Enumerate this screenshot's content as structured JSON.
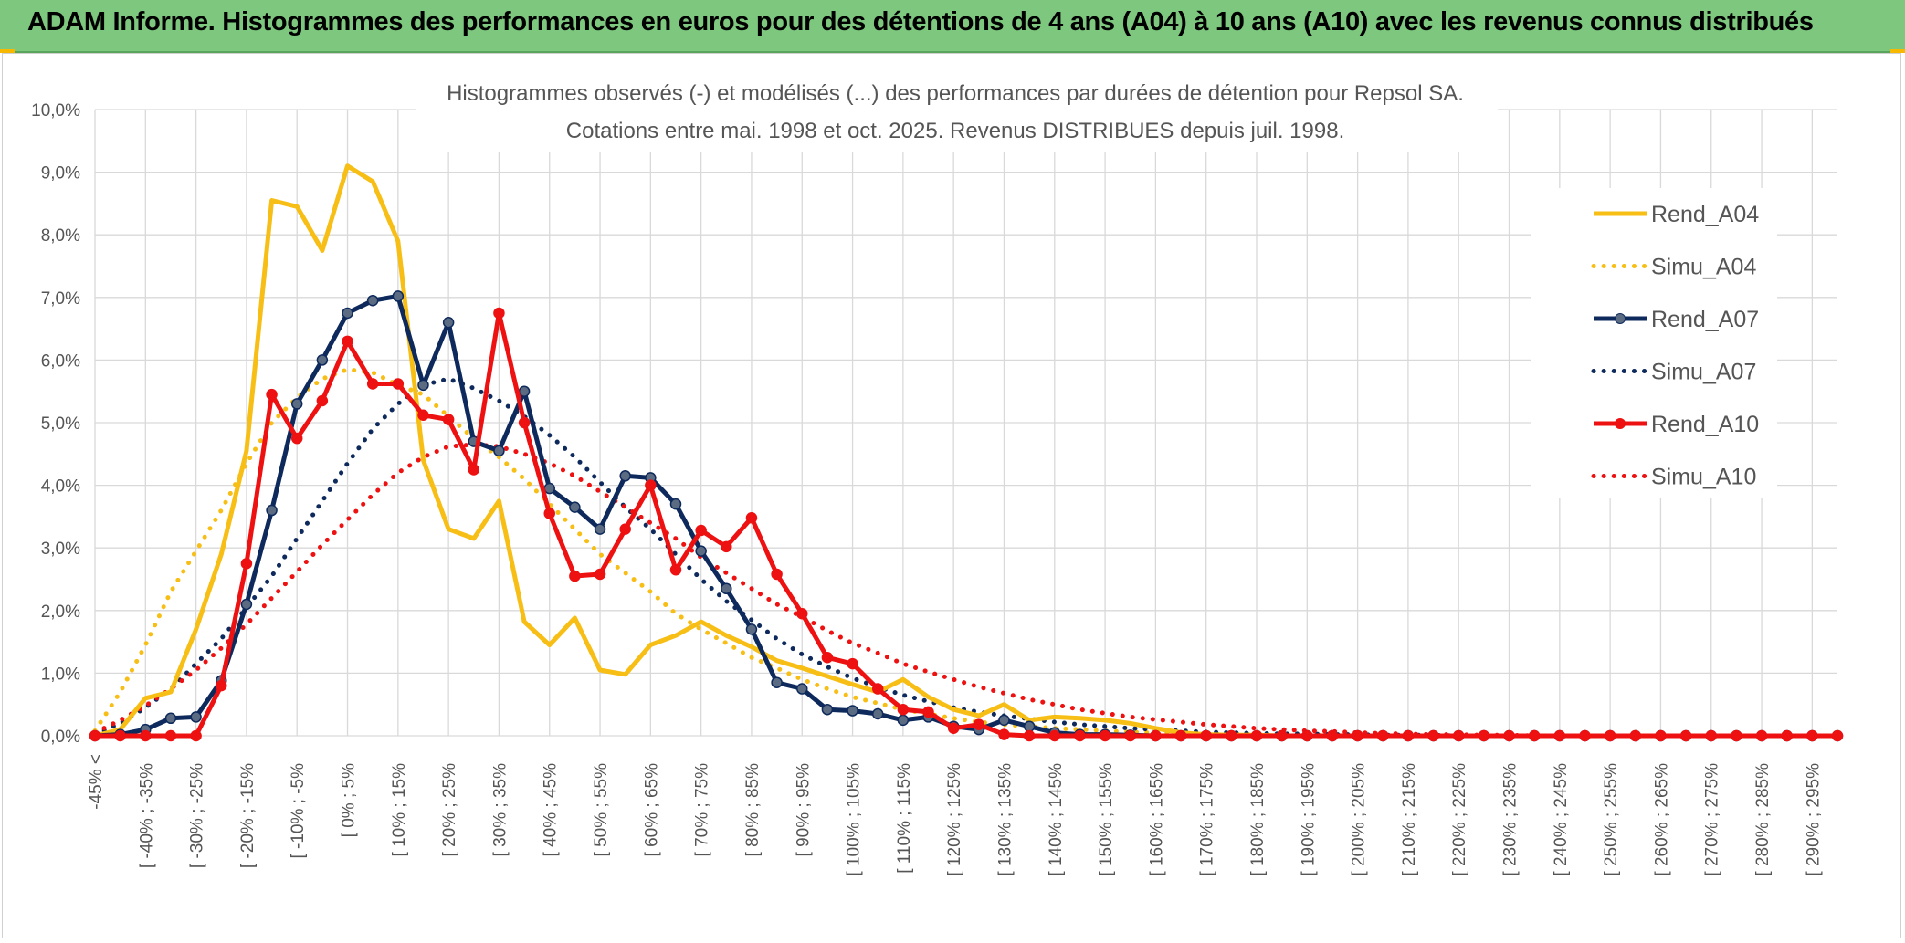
{
  "header": {
    "title": "ADAM Informe. Histogrammes des performances en euros pour des détentions de 4 ans (A04) à 10 ans (A10) avec les revenus connus distribués"
  },
  "chart_data": {
    "type": "line",
    "title_line1": "Histogrammes observés (-) et modélisés (...) des performances par durées de détention pour Repsol SA.",
    "title_line2": "Cotations entre mai. 1998 et oct. 2025. Revenus DISTRIBUES depuis juil. 1998.",
    "ylim": [
      0,
      10
    ],
    "y_ticks": [
      "0,0%",
      "1,0%",
      "2,0%",
      "3,0%",
      "4,0%",
      "5,0%",
      "6,0%",
      "7,0%",
      "8,0%",
      "9,0%",
      "10,0%"
    ],
    "x_labels": [
      "-45% <",
      "[ -40% ; -35%",
      "[ -30% ; -25%",
      "[ -20% ; -15%",
      "[ -10% ; -5%",
      "[ 0% ; 5%",
      "[ 10% ; 15%",
      "[ 20% ; 25%",
      "[ 30% ; 35%",
      "[ 40% ; 45%",
      "[ 50% ; 55%",
      "[ 60% ; 65%",
      "[ 70% ; 75%",
      "[ 80% ; 85%",
      "[ 90% ; 95%",
      "[ 100% ; 105%",
      "[ 110% ; 115%",
      "[ 120% ; 125%",
      "[ 130% ; 135%",
      "[ 140% ; 145%",
      "[ 150% ; 155%",
      "[ 160% ; 165%",
      "[ 170% ; 175%",
      "[ 180% ; 185%",
      "[ 190% ; 195%",
      "[ 200% ; 205%",
      "[ 210% ; 215%",
      "[ 220% ; 225%",
      "[ 230% ; 235%",
      "[ 240% ; 245%",
      "[ 250% ; 255%",
      "[ 260% ; 265%",
      "[ 270% ; 275%",
      "[ 280% ; 285%",
      "[ 290% ; 295%"
    ],
    "n_points": 70,
    "series": [
      {
        "name": "Rend_A04",
        "color": "#f7be16",
        "style": "solid",
        "markers": false,
        "values": [
          0,
          0.1,
          0.6,
          0.7,
          1.7,
          2.9,
          4.55,
          8.55,
          8.45,
          7.75,
          9.1,
          8.85,
          7.9,
          4.4,
          3.3,
          3.15,
          3.75,
          1.82,
          1.45,
          1.88,
          1.05,
          0.98,
          1.45,
          1.6,
          1.82,
          1.6,
          1.42,
          1.2,
          1.08,
          0.95,
          0.82,
          0.7,
          0.9,
          0.62,
          0.42,
          0.32,
          0.5,
          0.25,
          0.3,
          0.28,
          0.25,
          0.2,
          0.12,
          0.05,
          0.02,
          0.01,
          0.01,
          0,
          0,
          0,
          0,
          0,
          0,
          0,
          0,
          0,
          0,
          0,
          0,
          0,
          0,
          0,
          0,
          0,
          0,
          0,
          0,
          0,
          0,
          0
        ]
      },
      {
        "name": "Simu_A04",
        "color": "#f7be16",
        "style": "dotted",
        "markers": false,
        "values": [
          0.08,
          0.7,
          1.45,
          2.3,
          2.95,
          3.6,
          4.35,
          5.0,
          5.4,
          5.7,
          5.85,
          5.8,
          5.6,
          5.45,
          5.1,
          4.75,
          4.45,
          4.1,
          3.7,
          3.3,
          2.9,
          2.6,
          2.3,
          1.95,
          1.7,
          1.48,
          1.25,
          1.08,
          0.9,
          0.75,
          0.62,
          0.52,
          0.42,
          0.35,
          0.28,
          0.22,
          0.18,
          0.15,
          0.12,
          0.1,
          0.08,
          0.06,
          0.05,
          0.04,
          0.03,
          0.02,
          0.02,
          0.01,
          0.01,
          0.01,
          0,
          0,
          0,
          0,
          0,
          0,
          0,
          0,
          0,
          0,
          0,
          0,
          0,
          0,
          0,
          0,
          0,
          0,
          0,
          0
        ]
      },
      {
        "name": "Rend_A07",
        "color": "#0e2a5c",
        "style": "solid",
        "markers": true,
        "values": [
          0,
          0.02,
          0.1,
          0.28,
          0.3,
          0.88,
          2.1,
          3.6,
          5.3,
          6.0,
          6.75,
          6.95,
          7.02,
          5.6,
          6.6,
          4.7,
          4.55,
          5.5,
          3.95,
          3.65,
          3.3,
          4.15,
          4.12,
          3.7,
          2.95,
          2.35,
          1.7,
          0.85,
          0.75,
          0.42,
          0.4,
          0.35,
          0.25,
          0.3,
          0.15,
          0.1,
          0.25,
          0.15,
          0.05,
          0.02,
          0.02,
          0.01,
          0,
          0,
          0,
          0,
          0,
          0,
          0,
          0,
          0,
          0,
          0,
          0,
          0,
          0,
          0,
          0,
          0,
          0,
          0,
          0,
          0,
          0,
          0,
          0,
          0,
          0,
          0,
          0
        ]
      },
      {
        "name": "Simu_A07",
        "color": "#0e2a5c",
        "style": "dotted",
        "markers": false,
        "values": [
          0.02,
          0.2,
          0.45,
          0.75,
          1.15,
          1.55,
          2.05,
          2.55,
          3.15,
          3.75,
          4.35,
          4.9,
          5.3,
          5.6,
          5.7,
          5.55,
          5.35,
          5.1,
          4.8,
          4.45,
          4.05,
          3.65,
          3.3,
          2.9,
          2.5,
          2.15,
          1.85,
          1.55,
          1.3,
          1.1,
          0.92,
          0.78,
          0.65,
          0.55,
          0.45,
          0.38,
          0.32,
          0.27,
          0.22,
          0.18,
          0.15,
          0.12,
          0.1,
          0.08,
          0.06,
          0.05,
          0.04,
          0.03,
          0.03,
          0.02,
          0.02,
          0.01,
          0.01,
          0.01,
          0,
          0,
          0,
          0,
          0,
          0,
          0,
          0,
          0,
          0,
          0,
          0,
          0,
          0,
          0,
          0
        ]
      },
      {
        "name": "Rend_A10",
        "color": "#ee1111",
        "style": "solid",
        "markers": true,
        "values": [
          0,
          0,
          0,
          0,
          0,
          0.8,
          2.75,
          5.45,
          4.75,
          5.35,
          6.3,
          5.62,
          5.62,
          5.12,
          5.05,
          4.25,
          6.75,
          5.0,
          3.55,
          2.55,
          2.58,
          3.3,
          4.0,
          2.65,
          3.28,
          3.02,
          3.48,
          2.58,
          1.95,
          1.25,
          1.15,
          0.75,
          0.42,
          0.38,
          0.12,
          0.18,
          0.02,
          0,
          0,
          0,
          0,
          0,
          0,
          0,
          0,
          0,
          0,
          0,
          0,
          0,
          0,
          0,
          0,
          0,
          0,
          0,
          0,
          0,
          0,
          0,
          0,
          0,
          0,
          0,
          0,
          0,
          0,
          0,
          0,
          0
        ]
      },
      {
        "name": "Simu_A10",
        "color": "#ee1111",
        "style": "dotted",
        "markers": false,
        "values": [
          0.05,
          0.25,
          0.48,
          0.75,
          1.05,
          1.4,
          1.78,
          2.2,
          2.62,
          3.05,
          3.45,
          3.85,
          4.2,
          4.45,
          4.62,
          4.65,
          4.62,
          4.5,
          4.35,
          4.15,
          3.9,
          3.65,
          3.4,
          3.15,
          2.85,
          2.6,
          2.35,
          2.1,
          1.9,
          1.68,
          1.48,
          1.32,
          1.15,
          1.02,
          0.9,
          0.78,
          0.68,
          0.58,
          0.5,
          0.42,
          0.36,
          0.3,
          0.26,
          0.22,
          0.18,
          0.15,
          0.12,
          0.1,
          0.08,
          0.07,
          0.05,
          0.04,
          0.03,
          0.02,
          0.02,
          0.01,
          0.01,
          0,
          0,
          0,
          0,
          0,
          0,
          0,
          0,
          0,
          0,
          0,
          0,
          0
        ]
      }
    ],
    "legend": [
      "Rend_A04",
      "Simu_A04",
      "Rend_A07",
      "Simu_A07",
      "Rend_A10",
      "Simu_A10"
    ],
    "legend_position": "right"
  }
}
